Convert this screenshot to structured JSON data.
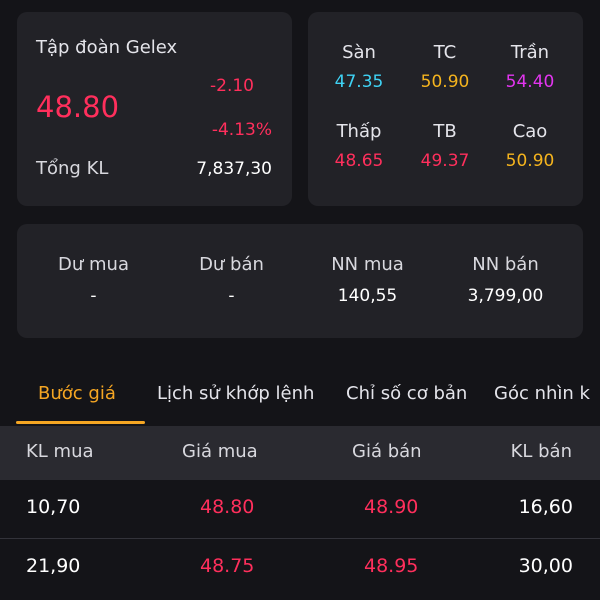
{
  "stock": {
    "company": "Tập đoàn Gelex",
    "price": "48.80",
    "change_abs": "-2.10",
    "change_pct": "-4.13%",
    "volume_label": "Tổng KL",
    "volume_value": "7,837,30"
  },
  "prices": [
    {
      "label": "Sàn",
      "value": "47.35",
      "color": "#3fd3f5"
    },
    {
      "label": "TC",
      "value": "50.90",
      "color": "#f5b41e"
    },
    {
      "label": "Trần",
      "value": "54.40",
      "color": "#e335f0"
    },
    {
      "label": "Thấp",
      "value": "48.65",
      "color": "#ff2f5c"
    },
    {
      "label": "TB",
      "value": "49.37",
      "color": "#ff2f5c"
    },
    {
      "label": "Cao",
      "value": "50.90",
      "color": "#f5b41e"
    }
  ],
  "orders": [
    {
      "label": "Dư mua",
      "value": "-"
    },
    {
      "label": "Dư bán",
      "value": "-"
    },
    {
      "label": "NN mua",
      "value": "140,55"
    },
    {
      "label": "NN bán",
      "value": "3,799,00"
    }
  ],
  "tabs": [
    {
      "label": "Bước giá",
      "active": true
    },
    {
      "label": "Lịch sử khớp lệnh",
      "active": false
    },
    {
      "label": "Chỉ số cơ bản",
      "active": false
    },
    {
      "label": "Góc nhìn k",
      "active": false
    }
  ],
  "table": {
    "headers": [
      "KL mua",
      "Giá mua",
      "Giá bán",
      "KL bán"
    ],
    "rows": [
      [
        "10,70",
        "48.80",
        "48.90",
        "16,60"
      ],
      [
        "21,90",
        "48.75",
        "48.95",
        "30,00"
      ]
    ]
  },
  "colors": {
    "down": "#ff2f5c",
    "reference": "#f5b41e",
    "floor": "#3fd3f5",
    "ceiling": "#e335f0",
    "accent": "#f5a623"
  }
}
